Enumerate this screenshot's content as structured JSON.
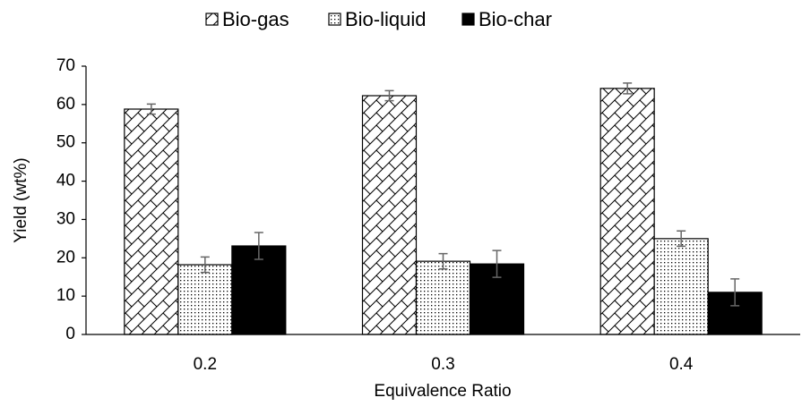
{
  "chart_data": {
    "type": "bar",
    "x_label": "Equivalence Ratio",
    "y_label": "Yield (wt%)",
    "categories": [
      "0.2",
      "0.3",
      "0.4"
    ],
    "series": [
      {
        "name": "Bio-gas",
        "color": "#000000",
        "pattern": "diagonal-cross",
        "values": [
          58.8,
          62.3,
          64.2
        ],
        "errors": [
          1.3,
          1.3,
          1.4
        ]
      },
      {
        "name": "Bio-liquid",
        "color": "#000000",
        "pattern": "dots",
        "values": [
          18.2,
          19.1,
          25.0
        ],
        "errors": [
          2.0,
          2.0,
          2.0
        ]
      },
      {
        "name": "Bio-char",
        "color": "#000000",
        "pattern": "solid",
        "values": [
          23.1,
          18.4,
          11.0
        ],
        "errors": [
          3.5,
          3.5,
          3.5
        ]
      }
    ],
    "ylim": [
      0,
      70
    ],
    "yticks": [
      0,
      10,
      20,
      30,
      40,
      50,
      60,
      70
    ],
    "grid": false,
    "legend": "top"
  }
}
